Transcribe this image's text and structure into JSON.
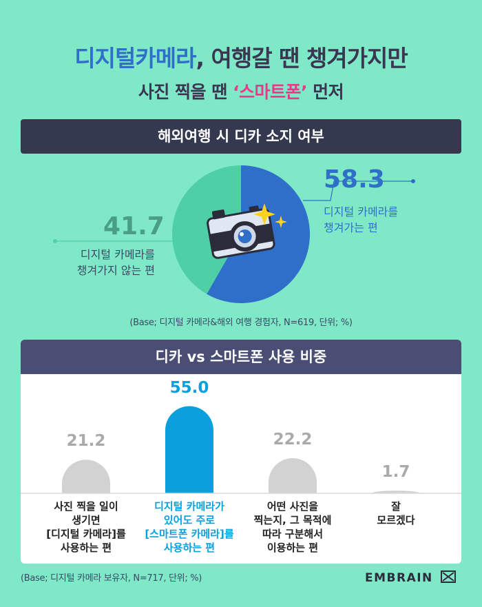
{
  "title": {
    "line1_highlight": "디지털카메라",
    "line1_rest": ", 여행갈 땐 챙겨가지만",
    "line2_before": "사진 찍을 땐 ",
    "line2_highlight": "‘스마트폰’",
    "line2_after": " 먼저"
  },
  "section1": {
    "header": "해외여행 시 디카 소지 여부",
    "note": "(Base; 디지털 카메라&해외 여행 경험자, N=619, 단위; %)"
  },
  "section2": {
    "header": "디카 vs 스마트폰 사용 비중",
    "note": "(Base; 디지털 카메라 보유자, N=717, 단위; %)"
  },
  "brand": "EMBRAIN",
  "colors": {
    "background": "#7ee8c7",
    "pie_blue": "#2f6fc9",
    "pie_green": "#4fcfa6",
    "bar_highlight": "#0aa0dc",
    "bar_gray": "#d2d2d2"
  },
  "chart_data": [
    {
      "type": "pie",
      "title": "해외여행 시 디카 소지 여부",
      "slices": [
        {
          "value": 58.3,
          "value_label": "58.3",
          "label_lines": [
            "디지털 카메라를",
            "챙겨가는 편"
          ]
        },
        {
          "value": 41.7,
          "value_label": "41.7",
          "label_lines": [
            "디지털 카메라를",
            "챙겨가지 않는 편"
          ]
        }
      ]
    },
    {
      "type": "bar",
      "title": "디카 vs 스마트폰 사용 비중",
      "categories": [
        [
          "사진 찍을 일이",
          "생기면",
          "[디지털 카메라]를",
          "사용하는 편"
        ],
        [
          "디지털 카메라가",
          "있어도 주로",
          "[스마트폰 카메라]를",
          "사용하는 편"
        ],
        [
          "어떤 사진을",
          "찍는지, 그 목적에",
          "따라 구분해서",
          "이용하는 편"
        ],
        [
          "잘",
          "모르겠다"
        ]
      ],
      "values": [
        21.2,
        55.0,
        22.2,
        1.7
      ],
      "value_labels": [
        "21.2",
        "55.0",
        "22.2",
        "1.7"
      ],
      "highlight_index": 1,
      "ylim": [
        0,
        60
      ]
    }
  ]
}
